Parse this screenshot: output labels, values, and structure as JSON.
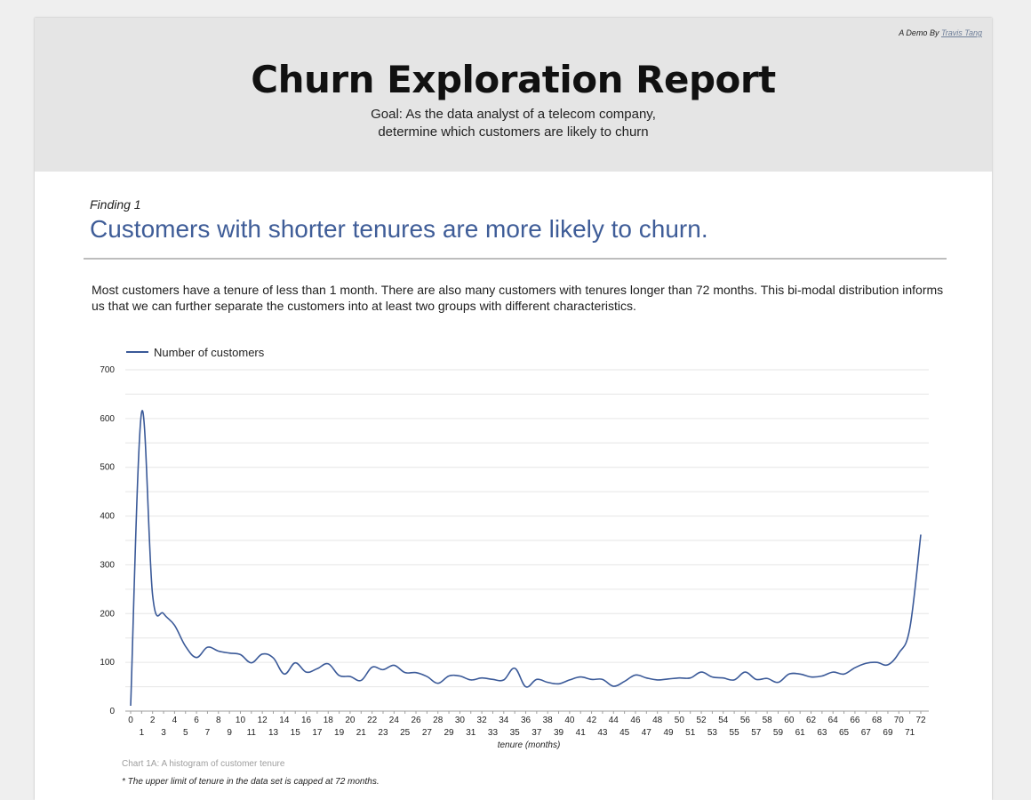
{
  "header": {
    "credit_prefix": "A Demo By",
    "credit_author": "Travis Tang",
    "title": "Churn Exploration Report",
    "goal_line1": "Goal: As the data analyst of a telecom company,",
    "goal_line2": "determine which customers are likely to churn"
  },
  "finding": {
    "label": "Finding 1",
    "title": "Customers with shorter tenures are more likely to churn.",
    "description": "Most customers have a tenure of less than 1 month. There are also many customers with tenures longer than 72 months. This bi-modal distribution informs us that we can further separate the customers into at least two groups with different characteristics."
  },
  "chart": {
    "caption": "Chart 1A: A histogram of customer tenure",
    "note": "* The upper limit of tenure in the data set is capped at 72 months."
  },
  "colors": {
    "line": "#3a5998",
    "title_accent": "#3f5d98"
  },
  "chart_data": {
    "type": "line",
    "xlabel": "tenure (months)",
    "ylabel": "",
    "legend": "top-left",
    "grid": true,
    "ylim": [
      0,
      700
    ],
    "yticks": [
      0,
      100,
      200,
      300,
      400,
      500,
      600,
      700
    ],
    "xlim": [
      0,
      72
    ],
    "series": [
      {
        "name": "Number of customers",
        "x": [
          0,
          1,
          2,
          3,
          4,
          5,
          6,
          7,
          8,
          9,
          10,
          11,
          12,
          13,
          14,
          15,
          16,
          17,
          18,
          19,
          20,
          21,
          22,
          23,
          24,
          25,
          26,
          27,
          28,
          29,
          30,
          31,
          32,
          33,
          34,
          35,
          36,
          37,
          38,
          39,
          40,
          41,
          42,
          43,
          44,
          45,
          46,
          47,
          48,
          49,
          50,
          51,
          52,
          53,
          54,
          55,
          56,
          57,
          58,
          59,
          60,
          61,
          62,
          63,
          64,
          65,
          66,
          67,
          68,
          69,
          70,
          71,
          72
        ],
        "values": [
          11,
          613,
          238,
          200,
          176,
          133,
          110,
          131,
          123,
          119,
          116,
          99,
          117,
          109,
          76,
          99,
          80,
          87,
          97,
          73,
          71,
          63,
          90,
          85,
          94,
          79,
          79,
          71,
          57,
          72,
          72,
          64,
          68,
          65,
          64,
          88,
          50,
          65,
          59,
          56,
          64,
          70,
          65,
          65,
          51,
          61,
          74,
          68,
          64,
          66,
          68,
          68,
          80,
          70,
          68,
          64,
          80,
          65,
          67,
          59,
          76,
          76,
          70,
          72,
          80,
          76,
          89,
          98,
          100,
          95,
          119,
          170,
          362
        ]
      }
    ]
  }
}
